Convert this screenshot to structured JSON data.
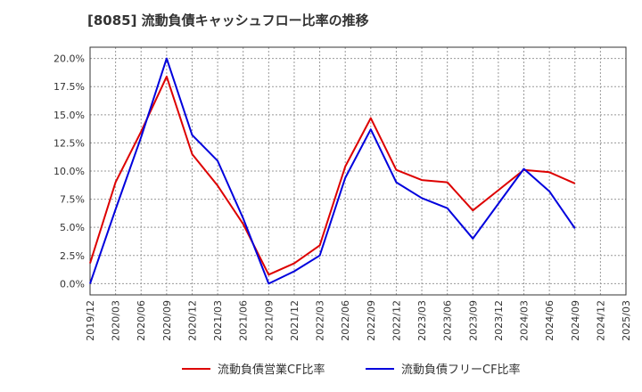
{
  "chart_data": {
    "type": "line",
    "title": "[8085]  流動負債キャッシュフロー比率の推移",
    "xlabel": "",
    "ylabel": "",
    "x_ticks": [
      "2019/12",
      "2020/03",
      "2020/06",
      "2020/09",
      "2020/12",
      "2021/03",
      "2021/06",
      "2021/09",
      "2021/12",
      "2022/03",
      "2022/06",
      "2022/09",
      "2022/12",
      "2023/03",
      "2023/06",
      "2023/09",
      "2023/12",
      "2024/03",
      "2024/06",
      "2024/09",
      "2024/12",
      "2025/03"
    ],
    "y_ticks": [
      "0.0%",
      "2.5%",
      "5.0%",
      "7.5%",
      "10.0%",
      "12.5%",
      "15.0%",
      "17.5%",
      "20.0%"
    ],
    "ylim": [
      -1.0,
      21.0
    ],
    "grid": true,
    "legend_position": "bottom",
    "series": [
      {
        "name": "流動負債営業CF比率",
        "color": "#dd0000",
        "x": [
          "2019/12",
          "2020/03",
          "2020/06",
          "2020/09",
          "2020/12",
          "2021/03",
          "2021/06",
          "2021/09",
          "2021/12",
          "2022/03",
          "2022/06",
          "2022/09",
          "2022/12",
          "2023/03",
          "2023/06",
          "2023/09",
          "2023/12",
          "2024/03",
          "2024/06",
          "2024/09"
        ],
        "values": [
          1.8,
          9.0,
          13.5,
          18.4,
          11.5,
          8.7,
          5.3,
          0.8,
          1.8,
          3.4,
          10.4,
          14.7,
          10.1,
          9.2,
          9.0,
          6.5,
          8.3,
          10.1,
          9.9,
          8.9
        ]
      },
      {
        "name": "流動負債フリーCF比率",
        "color": "#0000dd",
        "x": [
          "2019/12",
          "2020/03",
          "2020/06",
          "2020/09",
          "2020/12",
          "2021/03",
          "2021/06",
          "2021/09",
          "2021/12",
          "2022/03",
          "2022/06",
          "2022/09",
          "2022/12",
          "2023/03",
          "2023/06",
          "2023/09",
          "2023/12",
          "2024/03",
          "2024/06",
          "2024/09"
        ],
        "values": [
          0.0,
          6.6,
          13.0,
          20.0,
          13.2,
          10.9,
          5.8,
          0.0,
          1.1,
          2.5,
          9.4,
          13.7,
          9.0,
          7.6,
          6.7,
          4.0,
          7.1,
          10.2,
          8.2,
          4.9
        ]
      }
    ]
  }
}
